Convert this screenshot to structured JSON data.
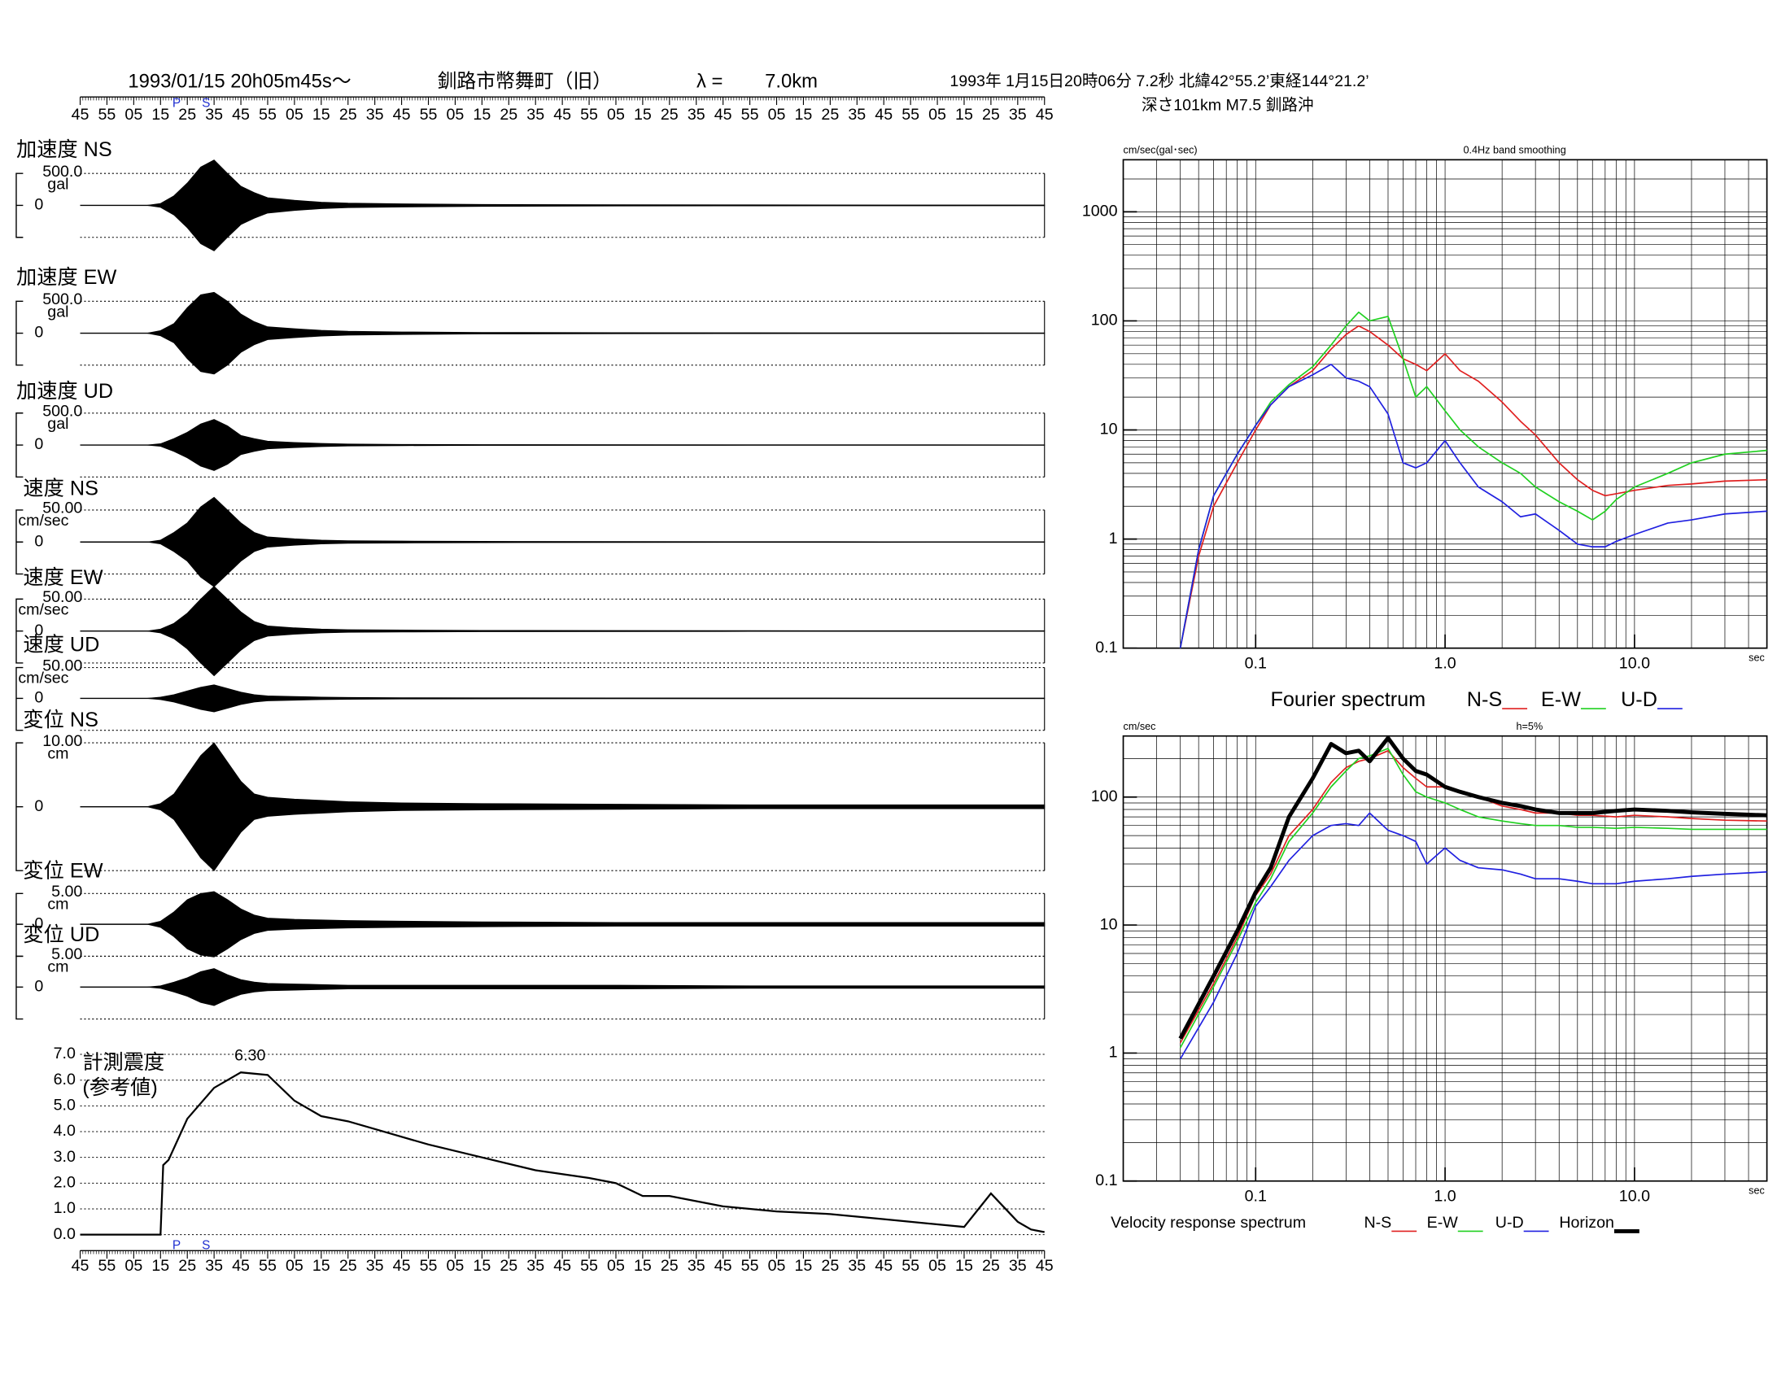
{
  "header": {
    "datetime": "1993/01/15  20h05m45s〜",
    "station": "釧路市幣舞町（旧）",
    "lambda_label": "λ =",
    "lambda": "7.0km",
    "origin": "1993年 1月15日20時06分 7.2秒 北緯42°55.2’東経144°21.2’",
    "depth": "深さ101km M7.5 釧路沖"
  },
  "chart_data": [
    {
      "type": "waveform",
      "xlim": [
        0,
        360
      ],
      "xticks": [
        {
          "value": 0,
          "label": "45"
        },
        {
          "value": 10,
          "label": "55"
        },
        {
          "value": 20,
          "label": "05"
        },
        {
          "value": 30,
          "label": "15"
        },
        {
          "value": 40,
          "label": "25"
        },
        {
          "value": 50,
          "label": "35"
        },
        {
          "value": 60,
          "label": "45"
        },
        {
          "value": 70,
          "label": "55"
        },
        {
          "value": 80,
          "label": "05"
        },
        {
          "value": 90,
          "label": "15"
        },
        {
          "value": 100,
          "label": "25"
        },
        {
          "value": 110,
          "label": "35"
        },
        {
          "value": 120,
          "label": "45"
        },
        {
          "value": 130,
          "label": "55"
        },
        {
          "value": 140,
          "label": "05"
        },
        {
          "value": 150,
          "label": "15"
        },
        {
          "value": 160,
          "label": "25"
        },
        {
          "value": 170,
          "label": "35"
        },
        {
          "value": 180,
          "label": "45"
        },
        {
          "value": 190,
          "label": "55"
        },
        {
          "value": 200,
          "label": "05"
        },
        {
          "value": 210,
          "label": "15"
        },
        {
          "value": 220,
          "label": "25"
        },
        {
          "value": 230,
          "label": "35"
        },
        {
          "value": 240,
          "label": "45"
        },
        {
          "value": 250,
          "label": "55"
        },
        {
          "value": 260,
          "label": "05"
        },
        {
          "value": 270,
          "label": "15"
        },
        {
          "value": 280,
          "label": "25"
        },
        {
          "value": 290,
          "label": "35"
        },
        {
          "value": 300,
          "label": "45"
        },
        {
          "value": 310,
          "label": "55"
        },
        {
          "value": 320,
          "label": "05"
        },
        {
          "value": 330,
          "label": "15"
        },
        {
          "value": 340,
          "label": "25"
        },
        {
          "value": 350,
          "label": "35"
        },
        {
          "value": 360,
          "label": "45"
        }
      ],
      "phases": [
        {
          "label": "P",
          "t": 36
        },
        {
          "label": "S",
          "t": 47
        }
      ],
      "t": [
        0,
        25,
        30,
        35,
        40,
        45,
        50,
        55,
        60,
        65,
        70,
        80,
        90,
        100,
        120,
        150,
        200,
        250,
        300,
        360
      ],
      "traces": [
        {
          "label": "加速度 NS",
          "scale": {
            "value": 500,
            "label": "500.0"
          },
          "unit": "gal",
          "zero": "0",
          "envelope": [
            0,
            0,
            30,
            150,
            350,
            600,
            711,
            500,
            300,
            200,
            120,
            80,
            50,
            35,
            25,
            15,
            10,
            8,
            6,
            5
          ]
        },
        {
          "label": "加速度 EW",
          "scale": {
            "value": 500,
            "label": "500.0"
          },
          "unit": "gal",
          "zero": "0",
          "envelope": [
            0,
            0,
            40,
            150,
            400,
            600,
            640,
            500,
            300,
            180,
            100,
            70,
            45,
            30,
            20,
            12,
            8,
            6,
            5,
            4
          ]
        },
        {
          "label": "加速度 UD",
          "scale": {
            "value": 500,
            "label": "500.0"
          },
          "unit": "gal",
          "zero": "0",
          "envelope": [
            0,
            0,
            20,
            100,
            200,
            330,
            400,
            300,
            150,
            100,
            60,
            40,
            25,
            15,
            10,
            6,
            4,
            3,
            3,
            2
          ]
        },
        {
          "label": "速度 NS",
          "scale": {
            "value": 50,
            "label": "50.00"
          },
          "unit": "cm/sec",
          "zero": "0",
          "envelope": [
            0,
            0,
            3,
            15,
            30,
            55,
            70,
            50,
            30,
            15,
            8,
            5,
            3,
            2,
            1.5,
            1,
            0.8,
            0.6,
            0.5,
            0.4
          ]
        },
        {
          "label": "速度 EW",
          "scale": {
            "value": 50,
            "label": "50.00"
          },
          "unit": "cm/sec",
          "zero": "0",
          "envelope": [
            0,
            0,
            3,
            12,
            28,
            50,
            70,
            50,
            30,
            15,
            8,
            5,
            3,
            2,
            1.5,
            1,
            0.8,
            0.6,
            0.5,
            0.4
          ]
        },
        {
          "label": "速度 UD",
          "scale": {
            "value": 50,
            "label": "50.00"
          },
          "unit": "cm/sec",
          "zero": "0",
          "envelope": [
            0,
            0,
            2,
            6,
            12,
            18,
            22,
            16,
            10,
            6,
            4,
            3,
            2,
            1.5,
            1,
            0.8,
            0.6,
            0.5,
            0.4,
            0.3
          ]
        },
        {
          "label": "変位 NS",
          "scale": {
            "value": 10,
            "label": "10.00"
          },
          "unit": "cm",
          "zero": "0",
          "envelope": [
            0,
            0,
            0.5,
            2,
            5,
            8,
            10,
            7,
            4,
            2,
            1.5,
            1.2,
            1,
            0.8,
            0.6,
            0.5,
            0.4,
            0.3,
            0.3,
            0.3
          ]
        },
        {
          "label": "変位 EW",
          "scale": {
            "value": 5,
            "label": "5.00"
          },
          "unit": "cm",
          "zero": "0",
          "envelope": [
            0,
            0,
            0.5,
            2,
            4,
            5,
            5.3,
            4,
            2.5,
            1.5,
            1,
            0.8,
            0.7,
            0.6,
            0.5,
            0.4,
            0.3,
            0.3,
            0.3,
            0.3
          ]
        },
        {
          "label": "変位 UD",
          "scale": {
            "value": 5,
            "label": "5.00"
          },
          "unit": "cm",
          "zero": "0",
          "envelope": [
            0,
            0,
            0.2,
            0.8,
            1.5,
            2.5,
            3,
            2,
            1.2,
            0.8,
            0.6,
            0.5,
            0.4,
            0.3,
            0.3,
            0.3,
            0.3,
            0.2,
            0.2,
            0.2
          ]
        }
      ]
    },
    {
      "type": "intensity",
      "title": "計測震度",
      "subtitle": "(参考値)",
      "x": [
        0,
        30,
        31,
        33,
        40,
        50,
        60,
        70,
        80,
        90,
        100,
        110,
        130,
        150,
        170,
        190,
        200,
        210,
        220,
        240,
        260,
        280,
        300,
        320,
        330,
        340,
        350,
        355,
        360
      ],
      "values": [
        0,
        0,
        2.7,
        2.9,
        4.5,
        5.7,
        6.3,
        6.2,
        5.2,
        4.6,
        4.4,
        4.1,
        3.5,
        3.0,
        2.5,
        2.2,
        2.0,
        1.5,
        1.5,
        1.1,
        0.9,
        0.8,
        0.6,
        0.4,
        0.3,
        1.6,
        0.5,
        0.2,
        0.1
      ],
      "peak": {
        "value": 6.3,
        "label": "6.30",
        "x": 60
      },
      "color": "#000000",
      "ylim": [
        0,
        7
      ],
      "yticks": [
        {
          "value": 0,
          "label": "0.0"
        },
        {
          "value": 1,
          "label": "1.0"
        },
        {
          "value": 2,
          "label": "2.0"
        },
        {
          "value": 3,
          "label": "3.0"
        },
        {
          "value": 4,
          "label": "4.0"
        },
        {
          "value": 5,
          "label": "5.0"
        },
        {
          "value": 6,
          "label": "6.0"
        },
        {
          "value": 7,
          "label": "7.0"
        }
      ],
      "grid": true
    },
    {
      "type": "loglog",
      "title": "Fourier spectrum",
      "subtitle": "0.4Hz band smoothing",
      "y_label": "cm/sec(gal･sec)",
      "x_label": "sec",
      "log_x": true,
      "log_y": true,
      "grid": true,
      "xlim": [
        0.02,
        50
      ],
      "ylim": [
        0.1,
        3000
      ],
      "xticks": [
        0.1,
        {
          "value": 1,
          "label": "1.0"
        },
        {
          "value": 10,
          "label": "10.0"
        }
      ],
      "yticks": [
        0.1,
        1,
        10,
        100,
        1000
      ],
      "x": [
        0.04,
        0.05,
        0.06,
        0.08,
        0.1,
        0.12,
        0.15,
        0.2,
        0.25,
        0.3,
        0.35,
        0.4,
        0.5,
        0.6,
        0.7,
        0.8,
        1.0,
        1.2,
        1.5,
        2,
        2.5,
        3,
        4,
        5,
        6,
        7,
        8,
        10,
        15,
        20,
        30,
        50
      ],
      "series": [
        {
          "name": "N-S",
          "color": "#e02020",
          "width": 1.2,
          "values": [
            0.1,
            0.7,
            2,
            5,
            10,
            17,
            25,
            35,
            55,
            75,
            90,
            80,
            60,
            45,
            40,
            35,
            50,
            35,
            28,
            18,
            12,
            9,
            5,
            3.5,
            2.8,
            2.5,
            2.6,
            2.8,
            3.1,
            3.2,
            3.4,
            3.5
          ]
        },
        {
          "name": "E-W",
          "color": "#20d020",
          "width": 1.2,
          "values": [
            0.1,
            0.8,
            2.5,
            6,
            11,
            18,
            26,
            38,
            60,
            90,
            120,
            100,
            110,
            45,
            20,
            25,
            15,
            10,
            7,
            5,
            4,
            3,
            2.2,
            1.8,
            1.5,
            1.8,
            2.3,
            3,
            4,
            5,
            6,
            6.5
          ]
        },
        {
          "name": "U-D",
          "color": "#2020e0",
          "width": 1.2,
          "values": [
            0.1,
            0.8,
            2.5,
            6,
            11,
            17,
            25,
            32,
            40,
            30,
            28,
            25,
            14,
            5,
            4.5,
            5,
            8,
            5,
            3,
            2.2,
            1.6,
            1.7,
            1.2,
            0.9,
            0.85,
            0.85,
            0.95,
            1.1,
            1.4,
            1.5,
            1.7,
            1.8
          ]
        }
      ]
    },
    {
      "type": "loglog",
      "title": "Velocity response spectrum",
      "subtitle": "h=5%",
      "y_label": "cm/sec",
      "x_label": "sec",
      "log_x": true,
      "log_y": true,
      "grid": true,
      "xlim": [
        0.02,
        50
      ],
      "ylim": [
        0.1,
        300
      ],
      "xticks": [
        0.1,
        {
          "value": 1,
          "label": "1.0"
        },
        {
          "value": 10,
          "label": "10.0"
        }
      ],
      "yticks": [
        0.1,
        1,
        10,
        100
      ],
      "x": [
        0.04,
        0.06,
        0.08,
        0.1,
        0.12,
        0.15,
        0.2,
        0.25,
        0.3,
        0.35,
        0.4,
        0.5,
        0.6,
        0.7,
        0.8,
        1,
        1.2,
        1.5,
        2,
        2.5,
        3,
        4,
        5,
        6,
        8,
        10,
        15,
        20,
        30,
        50
      ],
      "series": [
        {
          "name": "N-S",
          "color": "#e02020",
          "width": 1.2,
          "values": [
            1.2,
            3.5,
            8,
            17,
            25,
            50,
            80,
            130,
            170,
            190,
            200,
            230,
            170,
            140,
            120,
            120,
            110,
            100,
            85,
            80,
            75,
            75,
            72,
            72,
            70,
            72,
            70,
            68,
            66,
            65
          ]
        },
        {
          "name": "E-W",
          "color": "#20d020",
          "width": 1.2,
          "values": [
            1.1,
            3.3,
            7.5,
            15,
            23,
            45,
            75,
            120,
            160,
            200,
            210,
            240,
            150,
            110,
            100,
            90,
            80,
            70,
            65,
            62,
            60,
            60,
            58,
            58,
            57,
            58,
            57,
            56,
            56,
            56
          ]
        },
        {
          "name": "U-D",
          "color": "#2020e0",
          "width": 1.2,
          "values": [
            0.9,
            2.5,
            6,
            14,
            20,
            32,
            50,
            60,
            62,
            60,
            75,
            55,
            50,
            45,
            30,
            40,
            32,
            28,
            27,
            25,
            23,
            23,
            22,
            21,
            21,
            22,
            23,
            24,
            25,
            26
          ]
        },
        {
          "name": "Horizon",
          "color": "#000000",
          "width": 3.5,
          "values": [
            1.3,
            4,
            9,
            18,
            28,
            70,
            140,
            260,
            220,
            230,
            190,
            290,
            200,
            160,
            150,
            120,
            110,
            100,
            90,
            85,
            80,
            75,
            75,
            75,
            78,
            80,
            78,
            76,
            74,
            72
          ]
        }
      ]
    }
  ]
}
